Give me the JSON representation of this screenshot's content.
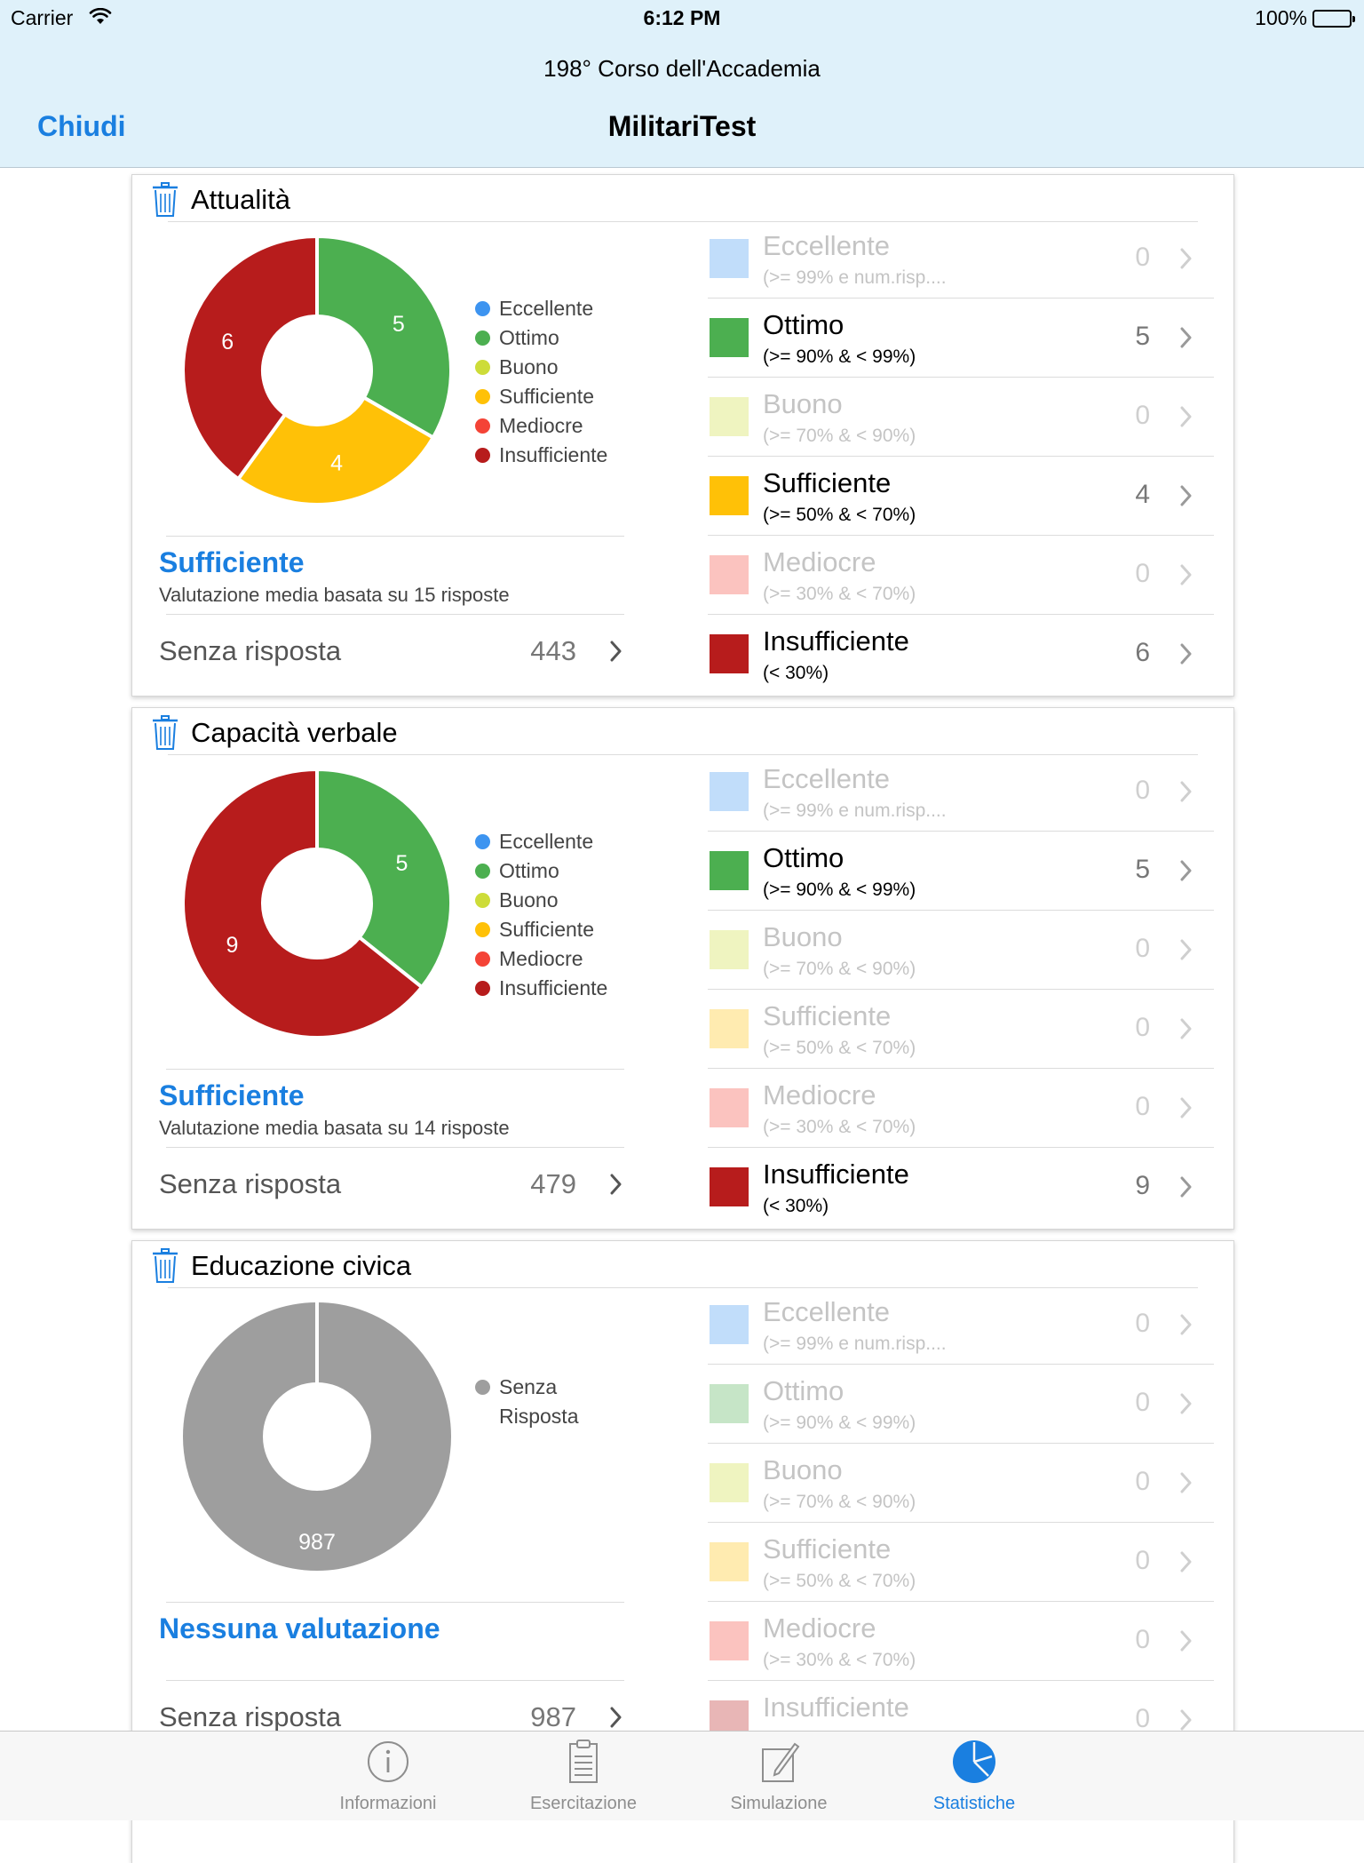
{
  "status_bar": {
    "carrier": "Carrier",
    "time": "6:12 PM",
    "battery": "100%"
  },
  "nav": {
    "subtitle": "198° Corso dell'Accademia",
    "title": "MilitariTest",
    "close_label": "Chiudi"
  },
  "legend_labels": [
    "Eccellente",
    "Ottimo",
    "Buono",
    "Sufficiente",
    "Mediocre",
    "Insufficiente"
  ],
  "grades": [
    {
      "label": "Eccellente",
      "range": "(>= 99% e num.risp....",
      "color": "#3d94f0"
    },
    {
      "label": "Ottimo",
      "range": "(>= 90% & < 99%)",
      "color": "#4caf50"
    },
    {
      "label": "Buono",
      "range": "(>= 70% & < 90%)",
      "color": "#cddc39"
    },
    {
      "label": "Sufficiente",
      "range": "(>= 50% & < 70%)",
      "color": "#ffc107"
    },
    {
      "label": "Mediocre",
      "range": "(>= 30% & < 70%)",
      "color": "#f44336"
    },
    {
      "label": "Insufficiente",
      "range": "(< 30%)",
      "color": "#b71c1c"
    }
  ],
  "unanswered_label": "Senza risposta",
  "unanswered_legend": "Senza Risposta",
  "unanswered_color": "#9e9e9e",
  "sections": [
    {
      "title": "Attualità",
      "rating": "Sufficiente",
      "rating_desc": "Valutazione media basata su 15 risposte",
      "unanswered": "443",
      "counts": [
        "0",
        "5",
        "0",
        "4",
        "0",
        "6"
      ]
    },
    {
      "title": "Capacità verbale",
      "rating": "Sufficiente",
      "rating_desc": "Valutazione media basata su 14 risposte",
      "unanswered": "479",
      "counts": [
        "0",
        "5",
        "0",
        "0",
        "0",
        "9"
      ]
    },
    {
      "title": "Educazione civica",
      "rating": "Nessuna valutazione",
      "rating_desc": "",
      "unanswered": "987",
      "counts": [
        "0",
        "0",
        "0",
        "0",
        "0",
        "0"
      ]
    }
  ],
  "chart_data": [
    {
      "type": "pie",
      "categories": [
        "Ottimo",
        "Sufficiente",
        "Insufficiente"
      ],
      "values": [
        5,
        4,
        6
      ],
      "colors": [
        "#4caf50",
        "#ffc107",
        "#b71c1c"
      ]
    },
    {
      "type": "pie",
      "categories": [
        "Ottimo",
        "Insufficiente"
      ],
      "values": [
        5,
        9
      ],
      "colors": [
        "#4caf50",
        "#b71c1c"
      ]
    },
    {
      "type": "pie",
      "categories": [
        "Senza Risposta"
      ],
      "values": [
        987
      ],
      "colors": [
        "#9e9e9e"
      ]
    }
  ],
  "tabs": [
    {
      "label": "Informazioni",
      "icon": "info-icon"
    },
    {
      "label": "Esercitazione",
      "icon": "clipboard-icon"
    },
    {
      "label": "Simulazione",
      "icon": "edit-icon"
    },
    {
      "label": "Statistiche",
      "icon": "pie-chart-icon",
      "active": true
    }
  ]
}
